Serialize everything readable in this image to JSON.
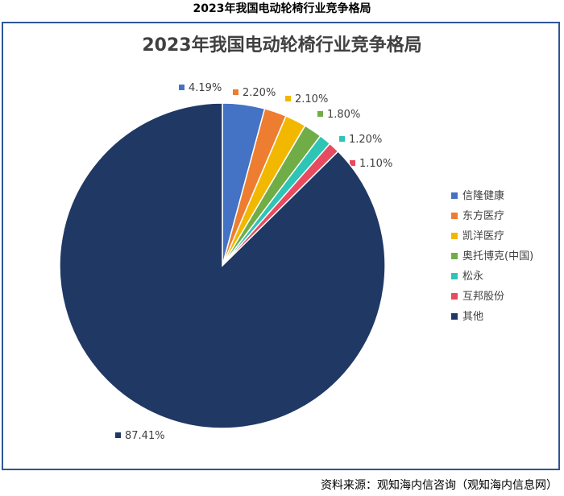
{
  "page_title": "2023年我国电动轮椅行业竞争格局",
  "source_text": "资料来源：观知海内信咨询（观知海内信息网）",
  "chart_data": {
    "type": "pie",
    "title": "2023年我国电动轮椅行业竞争格局",
    "legend_position": "right",
    "labels": [
      "信隆健康",
      "东方医疗",
      "凯洋医疗",
      "奥托博克(中国)",
      "松永",
      "互邦股份",
      "其他"
    ],
    "values": [
      4.19,
      2.2,
      2.1,
      1.8,
      1.2,
      1.1,
      87.41
    ],
    "value_labels": [
      "4.19%",
      "2.20%",
      "2.10%",
      "1.80%",
      "1.20%",
      "1.10%",
      "87.41%"
    ],
    "colors": [
      "#4472c4",
      "#ed7d31",
      "#f2b800",
      "#70ad47",
      "#2ec4b6",
      "#e84a5f",
      "#203864"
    ]
  }
}
